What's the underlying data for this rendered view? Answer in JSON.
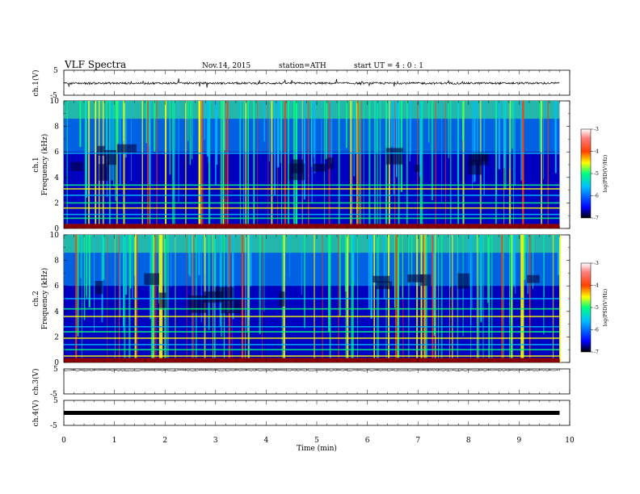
{
  "header": {
    "title": "VLF  Spectra",
    "date": "Nov.14, 2015",
    "station": "station=ATH",
    "start": "start  UT  =   4  : 0   : 1"
  },
  "colors": {
    "spectrogram_background": "#00007f",
    "colormap": [
      "#000000",
      "#0000ff",
      "#00bfff",
      "#00ff7f",
      "#ffff00",
      "#ff3f00",
      "#ffffff"
    ],
    "trace": "#000000"
  },
  "chart_data": [
    {
      "type": "line",
      "panel": "ch1-waveform",
      "ylabel": "ch.1(V)",
      "ylim": [
        -5,
        5
      ],
      "ytick_labels": [
        "5",
        "-5"
      ],
      "x_range_min": [
        0,
        9.8
      ],
      "baseline_value": -0.2,
      "description_values": "noisy waveform near 0 V with spikes of about ±1.5 V"
    },
    {
      "type": "heatmap",
      "panel": "ch1-spectrogram",
      "ylabel_channel": "ch.1",
      "ylabel": "Frequency  (kHz)",
      "ylim": [
        0,
        10
      ],
      "ytick_labels": [
        "0",
        "2",
        "4",
        "6",
        "8",
        "10"
      ],
      "x_range_min": [
        0,
        9.8
      ],
      "colorbar": {
        "label": "log(PSD(V²/Hz)",
        "range": [
          -7,
          -3
        ],
        "tick_labels": [
          "-3",
          "-4",
          "-5",
          "-6",
          "-7"
        ]
      },
      "strong_lines_khz": [
        0.3,
        0.8,
        1.1,
        1.6,
        2.0,
        2.6,
        3.1,
        3.4,
        5.9
      ]
    },
    {
      "type": "heatmap",
      "panel": "ch2-spectrogram",
      "ylabel_channel": "ch.2",
      "ylabel": "Frequency  (kHz)",
      "ylim": [
        0,
        10
      ],
      "ytick_labels": [
        "0",
        "2",
        "4",
        "6",
        "8",
        "10"
      ],
      "x_range_min": [
        0,
        9.8
      ],
      "colorbar": {
        "label": "log(PSD(V²/Hz)",
        "range": [
          -7,
          -3
        ],
        "tick_labels": [
          "-3",
          "-4",
          "-5",
          "-6",
          "-7"
        ]
      },
      "strong_lines_khz": [
        0.5,
        1.0,
        1.4,
        1.9,
        2.4,
        2.8,
        3.6,
        4.2,
        5.0
      ]
    },
    {
      "type": "line",
      "panel": "ch3-waveform",
      "ylabel": "ch.3(V)",
      "ylim": [
        -5,
        5
      ],
      "ytick_labels": [
        "5",
        "-5"
      ],
      "x_range_min": [
        0,
        9.8
      ],
      "baseline_value": 5
    },
    {
      "type": "line",
      "panel": "ch4-waveform",
      "ylabel": "ch.4(V)",
      "ylim": [
        -5,
        5
      ],
      "ytick_labels": [
        "5",
        "-5"
      ],
      "x_range_min": [
        0,
        9.8
      ],
      "baseline_value": 0
    }
  ],
  "x_axis": {
    "xlabel": "Time  (min)",
    "xlim": [
      0,
      10
    ],
    "tick_labels": [
      "0",
      "1",
      "2",
      "3",
      "4",
      "5",
      "6",
      "7",
      "8",
      "9",
      "10"
    ]
  }
}
